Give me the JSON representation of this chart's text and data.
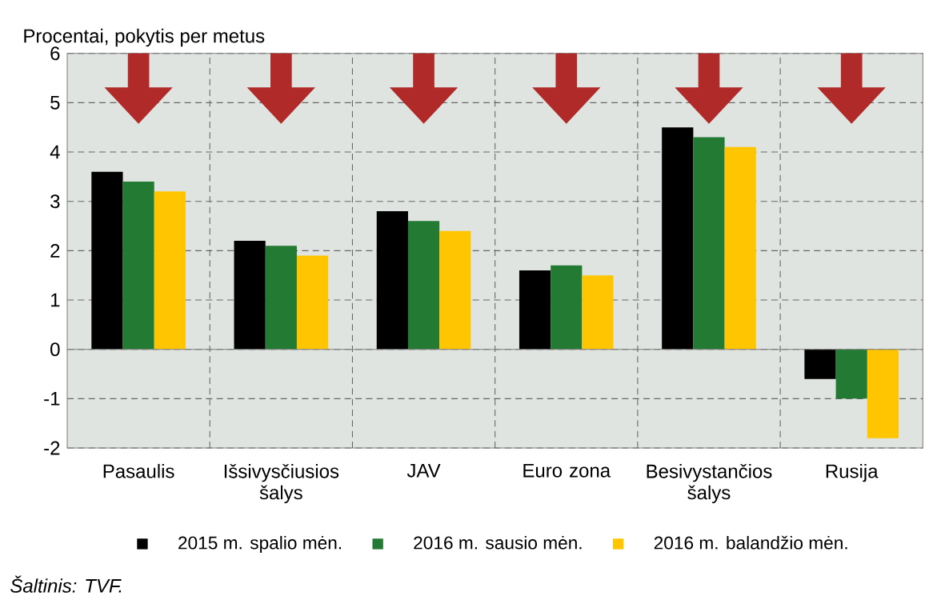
{
  "chart_data": {
    "type": "bar",
    "ylabel": "Procentai, pokytis per metus",
    "categories": [
      "Pasaulis",
      "Išsivysčiusios šalys",
      "JAV",
      "Euro zona",
      "Besivystančios šalys",
      "Rusija"
    ],
    "series": [
      {
        "name": "2015 m. spalio mėn.",
        "color": "#000000",
        "values": [
          3.6,
          2.2,
          2.8,
          1.6,
          4.5,
          -0.6
        ]
      },
      {
        "name": "2016 m. sausio mėn.",
        "color": "#237a32",
        "values": [
          3.4,
          2.1,
          2.6,
          1.7,
          4.3,
          -1.0
        ]
      },
      {
        "name": "2016 m. balandžio mėn.",
        "color": "#ffc600",
        "values": [
          3.2,
          1.9,
          2.4,
          1.5,
          4.1,
          -1.8
        ]
      }
    ],
    "ylim": [
      -2,
      6
    ],
    "yticks": [
      -2,
      -1,
      0,
      1,
      2,
      3,
      4,
      5,
      6
    ],
    "grid": true,
    "legend": "bottom",
    "annotations": [
      "Šaltinis: TVF."
    ]
  }
}
